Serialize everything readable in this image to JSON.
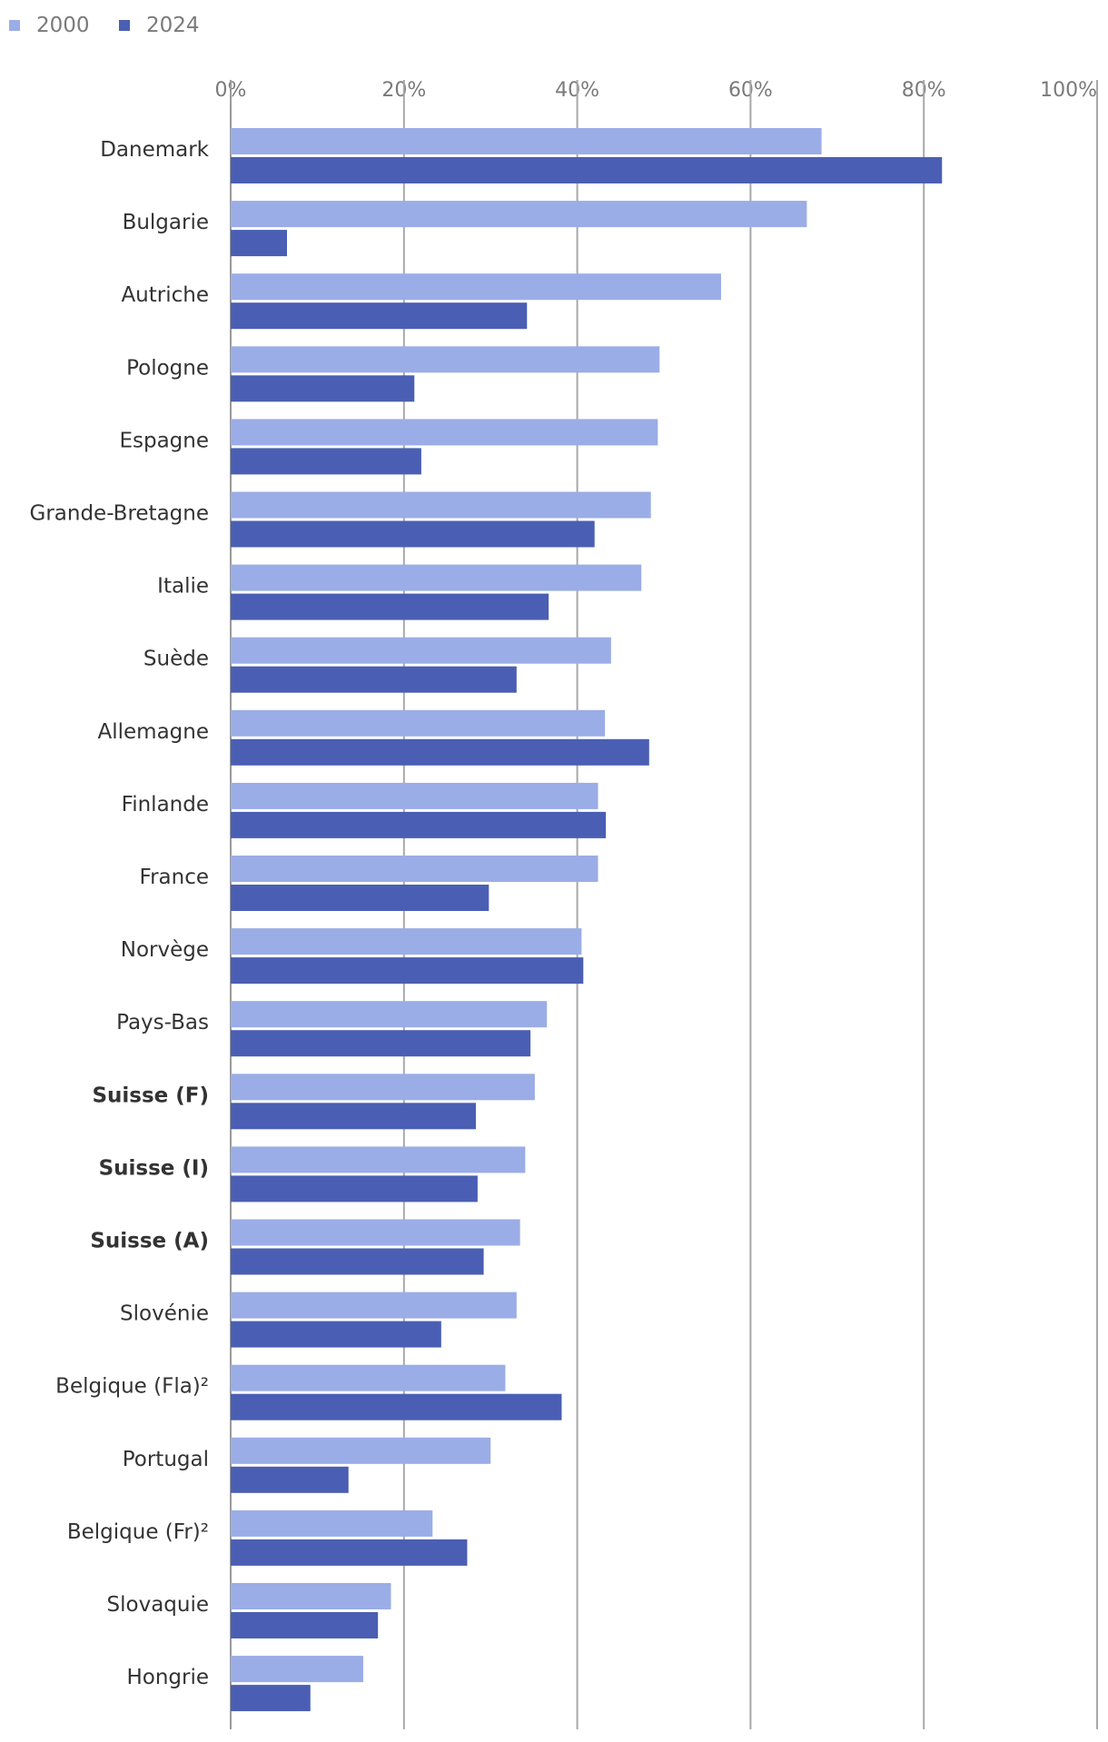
{
  "chart_data": {
    "type": "bar",
    "orientation": "horizontal",
    "title": "",
    "xlabel": "",
    "ylabel": "",
    "xlim": [
      0,
      100
    ],
    "x_ticks": [
      "0%",
      "20%",
      "40%",
      "60%",
      "80%",
      "100%"
    ],
    "grid": true,
    "legend_position": "top-left",
    "categories": [
      "Danemark",
      "Bulgarie",
      "Autriche",
      "Pologne",
      "Espagne",
      "Grande-Bretagne",
      "Italie",
      "Suède",
      "Allemagne",
      "Finlande",
      "France",
      "Norvège",
      "Pays-Bas",
      "Suisse (F)",
      "Suisse (I)",
      "Suisse (A)",
      "Slovénie",
      "Belgique (Fla)²",
      "Portugal",
      "Belgique (Fr)²",
      "Slovaquie",
      "Hongrie"
    ],
    "bold_categories": [
      "Suisse (F)",
      "Suisse (I)",
      "Suisse (A)"
    ],
    "series": [
      {
        "name": "2000",
        "color": "#9badE6",
        "values": [
          68.2,
          66.5,
          56.6,
          49.5,
          49.3,
          48.5,
          47.4,
          43.9,
          43.2,
          42.4,
          42.4,
          40.5,
          36.5,
          35.1,
          34.0,
          33.4,
          33.0,
          31.7,
          30.0,
          23.3,
          18.5,
          15.3
        ]
      },
      {
        "name": "2024",
        "color": "#4a5fb3",
        "values": [
          82.1,
          6.5,
          34.2,
          21.2,
          22.0,
          42.0,
          36.7,
          33.0,
          48.3,
          43.3,
          29.8,
          40.7,
          34.6,
          28.3,
          28.5,
          29.2,
          24.3,
          38.2,
          13.6,
          27.3,
          17.0,
          9.2
        ]
      }
    ]
  }
}
